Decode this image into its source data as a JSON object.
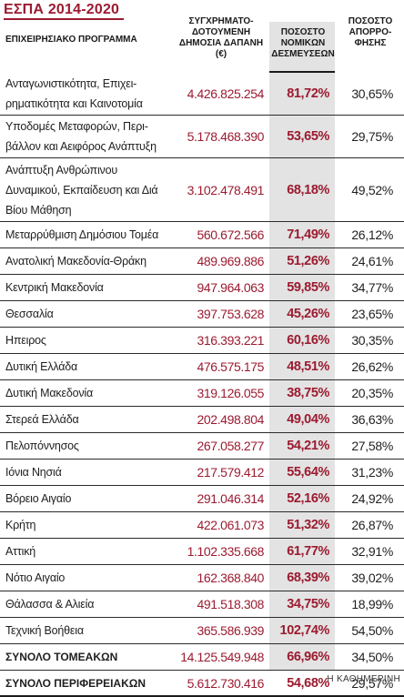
{
  "title": "ΕΣΠΑ 2014-2020",
  "headers": {
    "program": "ΕΠΙΧΕΙΡΗΣΙΑΚΟ ΠΡΟΓΡΑΜΜΑ",
    "spending": "ΣΥΓΧΡΗΜΑΤΟ-ΔΟΤΟΥΜΕΝΗ ΔΗΜΟΣΙΑ ΔΑΠΑΝΗ (€)",
    "legal": "ΠΟΣΟΣΤΟ ΝΟΜΙΚΩΝ ΔΕΣΜΕΥΣΕΩΝ",
    "absorption": "ΠΟΣΟΣΤΟ ΑΠΟΡΡΟ-ΦΗΣΗΣ"
  },
  "rows": [
    {
      "name": "Ανταγωνιστικότητα, Επιχει-ρηματικότητα και Καινοτομία",
      "spending": "4.426.825.254",
      "legal": "81,72%",
      "absorption": "30,65%"
    },
    {
      "name": "Υποδομές Μεταφορών, Περι-βάλλον και Αειφόρος Ανάπτυξη",
      "spending": "5.178.468.390",
      "legal": "53,65%",
      "absorption": "29,75%"
    },
    {
      "name": "Ανάπτυξη Ανθρώπινου Δυναμικού, Εκπαίδευση και Διά Βίου Μάθηση",
      "spending": "3.102.478.491",
      "legal": "68,18%",
      "absorption": "49,52%"
    },
    {
      "name": "Μεταρρύθμιση Δημόσιου Τομέα",
      "spending": "560.672.566",
      "legal": "71,49%",
      "absorption": "26,12%"
    },
    {
      "name": "Ανατολική Μακεδονία-Θράκη",
      "spending": "489.969.886",
      "legal": "51,26%",
      "absorption": "24,61%"
    },
    {
      "name": "Κεντρική Μακεδονία",
      "spending": "947.964.063",
      "legal": "59,85%",
      "absorption": "34,77%"
    },
    {
      "name": "Θεσσαλία",
      "spending": "397.753.628",
      "legal": "45,26%",
      "absorption": "23,65%"
    },
    {
      "name": "Ηπειρος",
      "spending": "316.393.221",
      "legal": "60,16%",
      "absorption": "30,35%"
    },
    {
      "name": "Δυτική Ελλάδα",
      "spending": "476.575.175",
      "legal": "48,51%",
      "absorption": "26,62%"
    },
    {
      "name": "Δυτική Μακεδονία",
      "spending": "319.126.055",
      "legal": "38,75%",
      "absorption": "20,35%"
    },
    {
      "name": "Στερεά Ελλάδα",
      "spending": "202.498.804",
      "legal": "49,04%",
      "absorption": "36,63%"
    },
    {
      "name": "Πελοπόννησος",
      "spending": "267.058.277",
      "legal": "54,21%",
      "absorption": "27,58%"
    },
    {
      "name": "Ιόνια Νησιά",
      "spending": "217.579.412",
      "legal": "55,64%",
      "absorption": "31,23%"
    },
    {
      "name": "Βόρειο Αιγαίο",
      "spending": "291.046.314",
      "legal": "52,16%",
      "absorption": "24,92%"
    },
    {
      "name": "Κρήτη",
      "spending": "422.061.073",
      "legal": "51,32%",
      "absorption": "26,87%"
    },
    {
      "name": "Αττική",
      "spending": "1.102.335.668",
      "legal": "61,77%",
      "absorption": "32,91%"
    },
    {
      "name": "Νότιο Αιγαίο",
      "spending": "162.368.840",
      "legal": "68,39%",
      "absorption": "39,02%"
    },
    {
      "name": "Θάλασσα & Αλιεία",
      "spending": "491.518.308",
      "legal": "34,75%",
      "absorption": "18,99%"
    },
    {
      "name": "Τεχνική Βοήθεια",
      "spending": "365.586.939",
      "legal": "102,74%",
      "absorption": "54,50%"
    }
  ],
  "totals": [
    {
      "name": "ΣΥΝΟΛΟ ΤΟΜΕΑΚΩΝ",
      "spending": "14.125.549.948",
      "legal": "66,96%",
      "absorption": "34,50%"
    },
    {
      "name": "ΣΥΝΟΛΟ ΠΕΡΙΦΕΡΕΙΑΚΩΝ",
      "spending": "5.612.730.416",
      "legal": "54,68%",
      "absorption": "29,57%"
    }
  ],
  "credit": "Η ΚΑΘΗΜΕΡΙΝΗ",
  "colors": {
    "accent": "#9b1b30",
    "highlight_column": "#e3e3e3"
  }
}
